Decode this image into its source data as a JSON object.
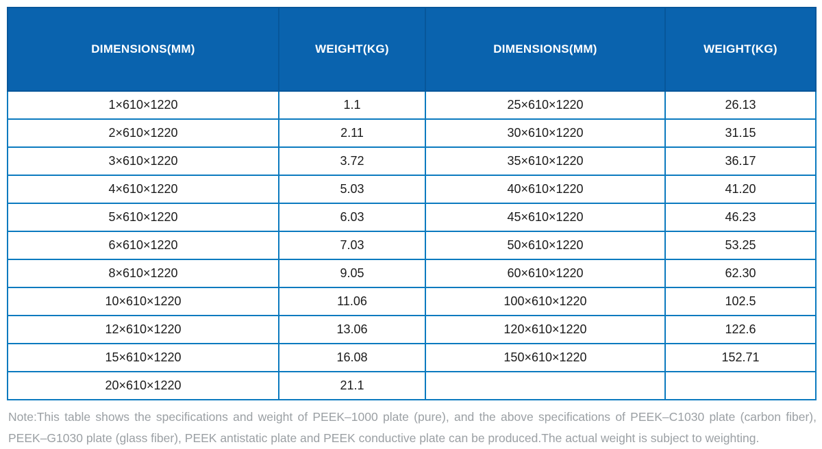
{
  "header": {
    "columns": [
      "DIMENSIONS(MM)",
      "WEIGHT(KG)",
      "DIMENSIONS(MM)",
      "WEIGHT(KG)"
    ]
  },
  "chart_data": {
    "type": "table",
    "columns": [
      "DIMENSIONS(MM)",
      "WEIGHT(KG)",
      "DIMENSIONS(MM)",
      "WEIGHT(KG)"
    ],
    "rows": [
      [
        "1×610×1220",
        "1.1",
        "25×610×1220",
        "26.13"
      ],
      [
        "2×610×1220",
        "2.11",
        "30×610×1220",
        "31.15"
      ],
      [
        "3×610×1220",
        "3.72",
        "35×610×1220",
        "36.17"
      ],
      [
        "4×610×1220",
        "5.03",
        "40×610×1220",
        "41.20"
      ],
      [
        "5×610×1220",
        "6.03",
        "45×610×1220",
        "46.23"
      ],
      [
        "6×610×1220",
        "7.03",
        "50×610×1220",
        "53.25"
      ],
      [
        "8×610×1220",
        "9.05",
        "60×610×1220",
        "62.30"
      ],
      [
        "10×610×1220",
        "11.06",
        "100×610×1220",
        "102.5"
      ],
      [
        "12×610×1220",
        "13.06",
        "120×610×1220",
        "122.6"
      ],
      [
        "15×610×1220",
        "16.08",
        "150×610×1220",
        "152.71"
      ],
      [
        "20×610×1220",
        "21.1",
        "",
        ""
      ]
    ]
  },
  "note": {
    "text": "Note:This table shows the specifications and weight of PEEK–1000 plate (pure), and the above specifications of PEEK–C1030 plate (carbon fiber), PEEK–G1030 plate (glass fiber), PEEK antistatic plate and PEEK conductive plate can be produced.The actual weight is subject to weighting."
  },
  "colors": {
    "header_bg": "#0a63ae",
    "header_divider": "#07569a",
    "header_text": "#ffffff",
    "cell_border": "#0b7abf",
    "cell_text": "#1b1b1b",
    "note_text": "#9ba0a4"
  }
}
